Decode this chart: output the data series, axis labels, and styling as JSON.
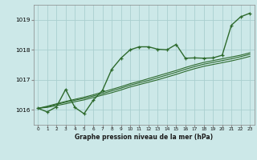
{
  "xlabel": "Graphe pression niveau de la mer (hPa)",
  "bg_color": "#cce8e8",
  "grid_color": "#aacfcf",
  "line_color": "#2d6a2d",
  "x_hours": [
    0,
    1,
    2,
    3,
    4,
    5,
    6,
    7,
    8,
    9,
    10,
    11,
    12,
    13,
    14,
    15,
    16,
    17,
    18,
    19,
    20,
    21,
    22,
    23
  ],
  "series1": [
    1016.05,
    1015.93,
    1016.1,
    1016.68,
    1016.08,
    1015.87,
    1016.32,
    1016.65,
    1017.35,
    1017.72,
    1018.0,
    1018.1,
    1018.1,
    1018.02,
    1018.0,
    1018.18,
    1017.72,
    1017.73,
    1017.72,
    1017.73,
    1017.82,
    1018.82,
    1019.1,
    1019.22
  ],
  "trend1": [
    1016.05,
    1016.1,
    1016.18,
    1016.25,
    1016.32,
    1016.38,
    1016.46,
    1016.54,
    1016.63,
    1016.72,
    1016.82,
    1016.9,
    1016.98,
    1017.07,
    1017.16,
    1017.25,
    1017.35,
    1017.44,
    1017.52,
    1017.58,
    1017.64,
    1017.7,
    1017.77,
    1017.85
  ],
  "trend2": [
    1016.05,
    1016.12,
    1016.2,
    1016.28,
    1016.35,
    1016.42,
    1016.5,
    1016.59,
    1016.68,
    1016.77,
    1016.87,
    1016.95,
    1017.04,
    1017.13,
    1017.22,
    1017.31,
    1017.41,
    1017.5,
    1017.58,
    1017.64,
    1017.7,
    1017.76,
    1017.82,
    1017.9
  ],
  "trend3": [
    1016.05,
    1016.08,
    1016.14,
    1016.2,
    1016.27,
    1016.33,
    1016.41,
    1016.49,
    1016.57,
    1016.66,
    1016.76,
    1016.84,
    1016.92,
    1017.0,
    1017.09,
    1017.18,
    1017.28,
    1017.37,
    1017.45,
    1017.51,
    1017.57,
    1017.63,
    1017.7,
    1017.78
  ],
  "ylim": [
    1015.5,
    1019.5
  ],
  "yticks": [
    1016,
    1017,
    1018,
    1019
  ],
  "xlim": [
    -0.5,
    23.5
  ]
}
